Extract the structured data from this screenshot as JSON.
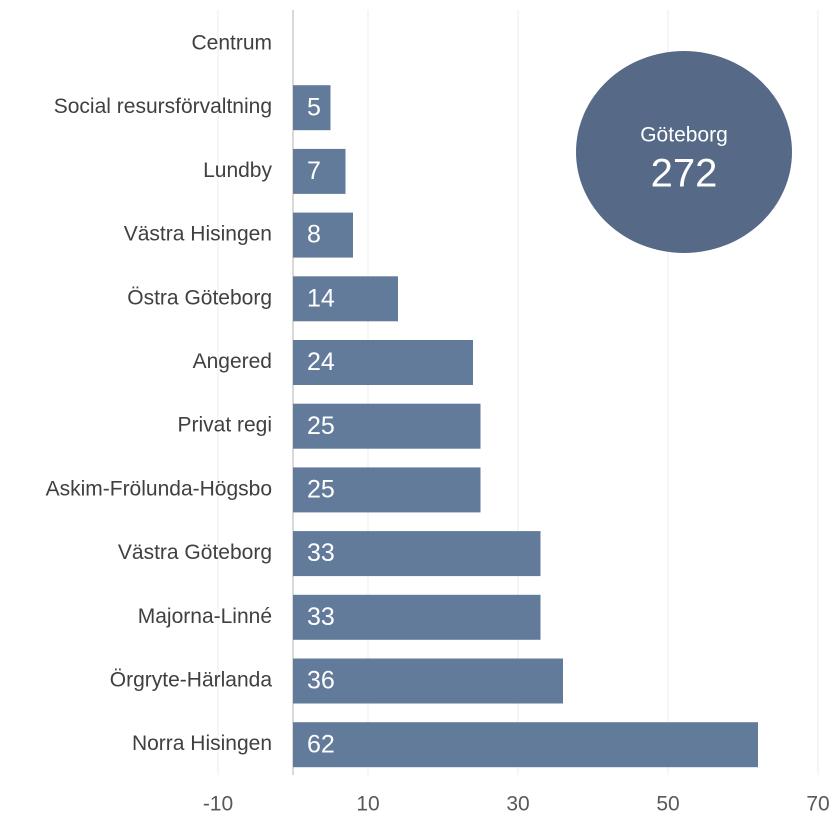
{
  "chart_data": {
    "type": "barh",
    "categories": [
      "Centrum",
      "Social resursförvaltning",
      "Lundby",
      "Västra Hisingen",
      "Östra Göteborg",
      "Angered",
      "Privat regi",
      "Askim-Frölunda-Högsbo",
      "Västra Göteborg",
      "Majorna-Linné",
      "Örgryte-Härlanda",
      "Norra Hisingen"
    ],
    "values": [
      null,
      5,
      7,
      8,
      14,
      24,
      25,
      25,
      33,
      33,
      36,
      62
    ],
    "color": "#637b9b",
    "xlim": [
      -10,
      70
    ],
    "xticks": [
      -10,
      10,
      30,
      50,
      70
    ],
    "grid": true,
    "annotation": {
      "label": "Göteborg",
      "value": 272,
      "color": "#566a87"
    }
  }
}
